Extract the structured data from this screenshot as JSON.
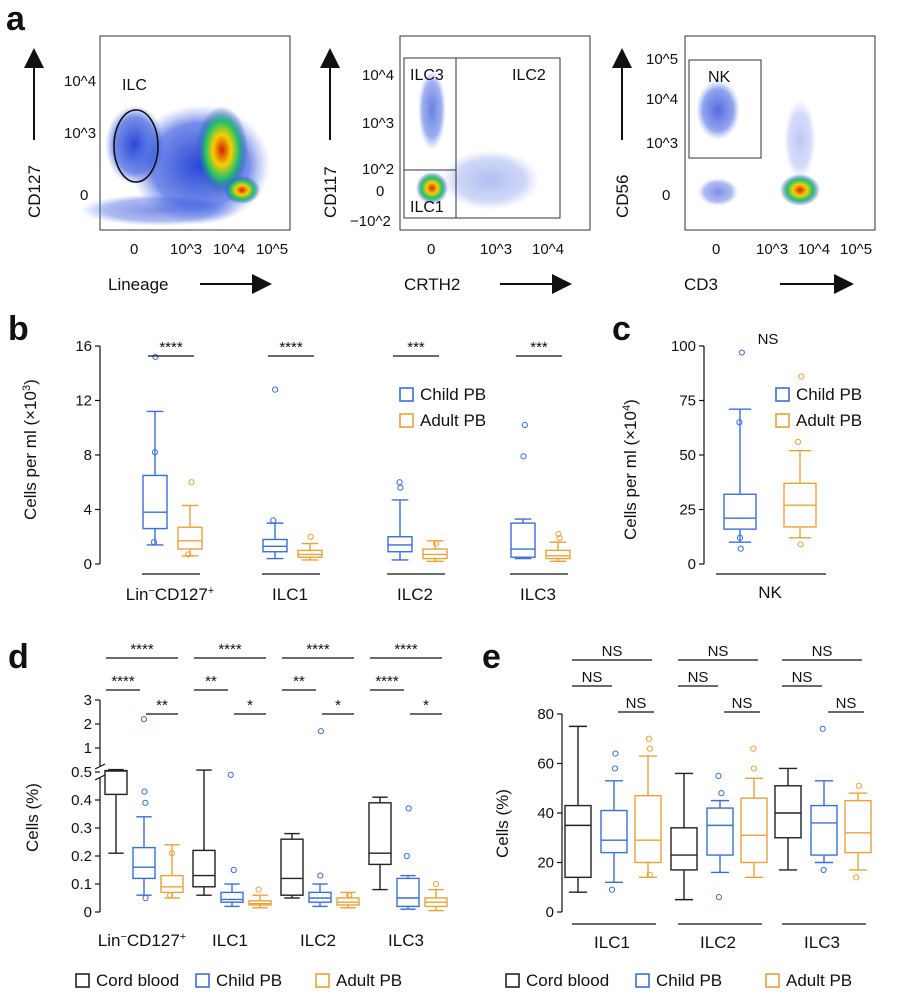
{
  "colors": {
    "cord": "#222222",
    "child": "#3a6fd8",
    "adult": "#e8a23a"
  },
  "panel_a": {
    "label": "a",
    "plots": [
      {
        "xlabel": "Lineage",
        "ylabel": "CD127",
        "xticks": [
          "0",
          "10^3",
          "10^4",
          "10^5"
        ],
        "yticks": [
          "0",
          "10^3",
          "10^4"
        ],
        "gates": [
          "ILC"
        ]
      },
      {
        "xlabel": "CRTH2",
        "ylabel": "CD117",
        "xticks": [
          "0",
          "10^3",
          "10^4"
        ],
        "yticks": [
          "−10^2",
          "0",
          "10^2",
          "10^3",
          "10^4"
        ],
        "gates": [
          "ILC3",
          "ILC2",
          "ILC1"
        ]
      },
      {
        "xlabel": "CD3",
        "ylabel": "CD56",
        "xticks": [
          "0",
          "10^3",
          "10^4",
          "10^5"
        ],
        "yticks": [
          "0",
          "10^3",
          "10^4",
          "10^5"
        ],
        "gates": [
          "NK"
        ]
      }
    ]
  },
  "chart_data": [
    {
      "panel": "b",
      "type": "box",
      "ylabel": "Cells per ml (×10^3)",
      "ylim": [
        0,
        16
      ],
      "yticks": [
        "0",
        "4",
        "8",
        "12",
        "16"
      ],
      "legend": [
        "Child PB",
        "Adult PB"
      ],
      "categories": [
        "Lin−CD127+",
        "ILC1",
        "ILC2",
        "ILC3"
      ],
      "significance": [
        "****",
        "****",
        "***",
        "***"
      ],
      "series": [
        {
          "name": "Child PB",
          "boxes": [
            {
              "min": 1.4,
              "q1": 2.6,
              "median": 3.8,
              "q3": 6.5,
              "max": 11.2,
              "outliers": [
                1.6,
                8.2,
                15.2
              ]
            },
            {
              "min": 0.4,
              "q1": 0.9,
              "median": 1.3,
              "q3": 1.8,
              "max": 3.0,
              "outliers": [
                3.2,
                12.8
              ]
            },
            {
              "min": 0.3,
              "q1": 0.9,
              "median": 1.4,
              "q3": 2.0,
              "max": 4.7,
              "outliers": [
                5.6,
                6.0
              ]
            },
            {
              "min": 0.4,
              "q1": 0.5,
              "median": 1.1,
              "q3": 3.0,
              "max": 3.3,
              "outliers": [
                7.9,
                10.2
              ]
            }
          ]
        },
        {
          "name": "Adult PB",
          "boxes": [
            {
              "min": 0.6,
              "q1": 1.1,
              "median": 1.7,
              "q3": 2.7,
              "max": 4.3,
              "outliers": [
                0.7,
                6.0
              ]
            },
            {
              "min": 0.3,
              "q1": 0.5,
              "median": 0.7,
              "q3": 1.0,
              "max": 1.5,
              "outliers": [
                2.0
              ]
            },
            {
              "min": 0.2,
              "q1": 0.4,
              "median": 0.7,
              "q3": 1.1,
              "max": 1.7,
              "outliers": [
                1.5
              ]
            },
            {
              "min": 0.2,
              "q1": 0.4,
              "median": 0.6,
              "q3": 1.0,
              "max": 1.6,
              "outliers": [
                1.9,
                2.2
              ]
            }
          ]
        }
      ]
    },
    {
      "panel": "c",
      "type": "box",
      "ylabel": "Cells per ml (×10^4)",
      "ylim": [
        0,
        100
      ],
      "yticks": [
        "0",
        "25",
        "50",
        "75",
        "100"
      ],
      "legend": [
        "Child PB",
        "Adult PB"
      ],
      "categories": [
        "NK"
      ],
      "significance": [
        "NS"
      ],
      "series": [
        {
          "name": "Child PB",
          "boxes": [
            {
              "min": 10,
              "q1": 16,
              "median": 21,
              "q3": 32,
              "max": 71,
              "outliers": [
                7,
                12,
                65,
                97
              ]
            }
          ]
        },
        {
          "name": "Adult PB",
          "boxes": [
            {
              "min": 12,
              "q1": 17,
              "median": 27,
              "q3": 37,
              "max": 52,
              "outliers": [
                9,
                56,
                86
              ]
            }
          ]
        }
      ]
    },
    {
      "panel": "d",
      "type": "box",
      "ylabel": "Cells (%)",
      "yticks": [
        "0",
        "0.1",
        "0.2",
        "0.3",
        "0.4",
        "0.5",
        "1",
        "2",
        "3"
      ],
      "legend": [
        "Cord blood",
        "Child PB",
        "Adult PB"
      ],
      "categories": [
        "Lin−CD127+",
        "ILC1",
        "ILC2",
        "ILC3"
      ],
      "significance": [
        {
          "cord_vs_adult": "****",
          "cord_vs_child": "****",
          "child_vs_adult": "**"
        },
        {
          "cord_vs_adult": "****",
          "cord_vs_child": "**",
          "child_vs_adult": "*"
        },
        {
          "cord_vs_adult": "****",
          "cord_vs_child": "**",
          "child_vs_adult": "*"
        },
        {
          "cord_vs_adult": "****",
          "cord_vs_child": "****",
          "child_vs_adult": "*"
        }
      ],
      "series": [
        {
          "name": "Cord blood",
          "boxes": [
            {
              "min": 0.21,
              "q1": 0.42,
              "median": 0.52,
              "q3": 0.53,
              "max": 0.55,
              "outliers": []
            },
            {
              "min": 0.06,
              "q1": 0.09,
              "median": 0.13,
              "q3": 0.22,
              "max": 0.54,
              "outliers": []
            },
            {
              "min": 0.05,
              "q1": 0.06,
              "median": 0.12,
              "q3": 0.26,
              "max": 0.28,
              "outliers": []
            },
            {
              "min": 0.08,
              "q1": 0.17,
              "median": 0.21,
              "q3": 0.39,
              "max": 0.41,
              "outliers": []
            }
          ]
        },
        {
          "name": "Child PB",
          "boxes": [
            {
              "min": 0.06,
              "q1": 0.12,
              "median": 0.16,
              "q3": 0.23,
              "max": 0.34,
              "outliers": [
                0.05,
                0.39,
                0.43,
                2.2
              ]
            },
            {
              "min": 0.02,
              "q1": 0.035,
              "median": 0.045,
              "q3": 0.07,
              "max": 0.1,
              "outliers": [
                0.15,
                0.49
              ]
            },
            {
              "min": 0.02,
              "q1": 0.035,
              "median": 0.05,
              "q3": 0.07,
              "max": 0.1,
              "outliers": [
                0.13,
                1.7
              ]
            },
            {
              "min": 0.01,
              "q1": 0.02,
              "median": 0.05,
              "q3": 0.12,
              "max": 0.13,
              "outliers": [
                0.2,
                0.37
              ]
            }
          ]
        },
        {
          "name": "Adult PB",
          "boxes": [
            {
              "min": 0.05,
              "q1": 0.07,
              "median": 0.09,
              "q3": 0.13,
              "max": 0.24,
              "outliers": [
                0.06,
                0.21
              ]
            },
            {
              "min": 0.015,
              "q1": 0.025,
              "median": 0.03,
              "q3": 0.04,
              "max": 0.06,
              "outliers": [
                0.08
              ]
            },
            {
              "min": 0.015,
              "q1": 0.025,
              "median": 0.035,
              "q3": 0.05,
              "max": 0.07,
              "outliers": [
                0.06
              ]
            },
            {
              "min": 0.005,
              "q1": 0.02,
              "median": 0.035,
              "q3": 0.05,
              "max": 0.08,
              "outliers": [
                0.1
              ]
            }
          ]
        }
      ]
    },
    {
      "panel": "e",
      "type": "box",
      "ylabel": "Cells (%)",
      "ylim": [
        0,
        80
      ],
      "yticks": [
        "0",
        "20",
        "40",
        "60",
        "80"
      ],
      "legend": [
        "Cord blood",
        "Child PB",
        "Adult PB"
      ],
      "categories": [
        "ILC1",
        "ILC2",
        "ILC3"
      ],
      "significance": [
        {
          "cord_vs_adult": "NS",
          "cord_vs_child": "NS",
          "child_vs_adult": "NS"
        },
        {
          "cord_vs_adult": "NS",
          "cord_vs_child": "NS",
          "child_vs_adult": "NS"
        },
        {
          "cord_vs_adult": "NS",
          "cord_vs_child": "NS",
          "child_vs_adult": "NS"
        }
      ],
      "series": [
        {
          "name": "Cord blood",
          "boxes": [
            {
              "min": 8,
              "q1": 14,
              "median": 35,
              "q3": 43,
              "max": 75,
              "outliers": []
            },
            {
              "min": 5,
              "q1": 17,
              "median": 23,
              "q3": 34,
              "max": 56,
              "outliers": []
            },
            {
              "min": 17,
              "q1": 30,
              "median": 40,
              "q3": 51,
              "max": 58,
              "outliers": []
            }
          ]
        },
        {
          "name": "Child PB",
          "boxes": [
            {
              "min": 12,
              "q1": 24,
              "median": 29,
              "q3": 41,
              "max": 53,
              "outliers": [
                9,
                58,
                64
              ]
            },
            {
              "min": 16,
              "q1": 23,
              "median": 35,
              "q3": 42,
              "max": 45,
              "outliers": [
                6,
                48,
                55
              ]
            },
            {
              "min": 20,
              "q1": 23,
              "median": 36,
              "q3": 43,
              "max": 53,
              "outliers": [
                17,
                74
              ]
            }
          ]
        },
        {
          "name": "Adult PB",
          "boxes": [
            {
              "min": 14,
              "q1": 20,
              "median": 29,
              "q3": 47,
              "max": 63,
              "outliers": [
                15,
                66,
                70
              ]
            },
            {
              "min": 14,
              "q1": 20,
              "median": 31,
              "q3": 46,
              "max": 54,
              "outliers": [
                58,
                66
              ]
            },
            {
              "min": 17,
              "q1": 24,
              "median": 32,
              "q3": 45,
              "max": 48,
              "outliers": [
                14,
                51
              ]
            }
          ]
        }
      ]
    }
  ]
}
